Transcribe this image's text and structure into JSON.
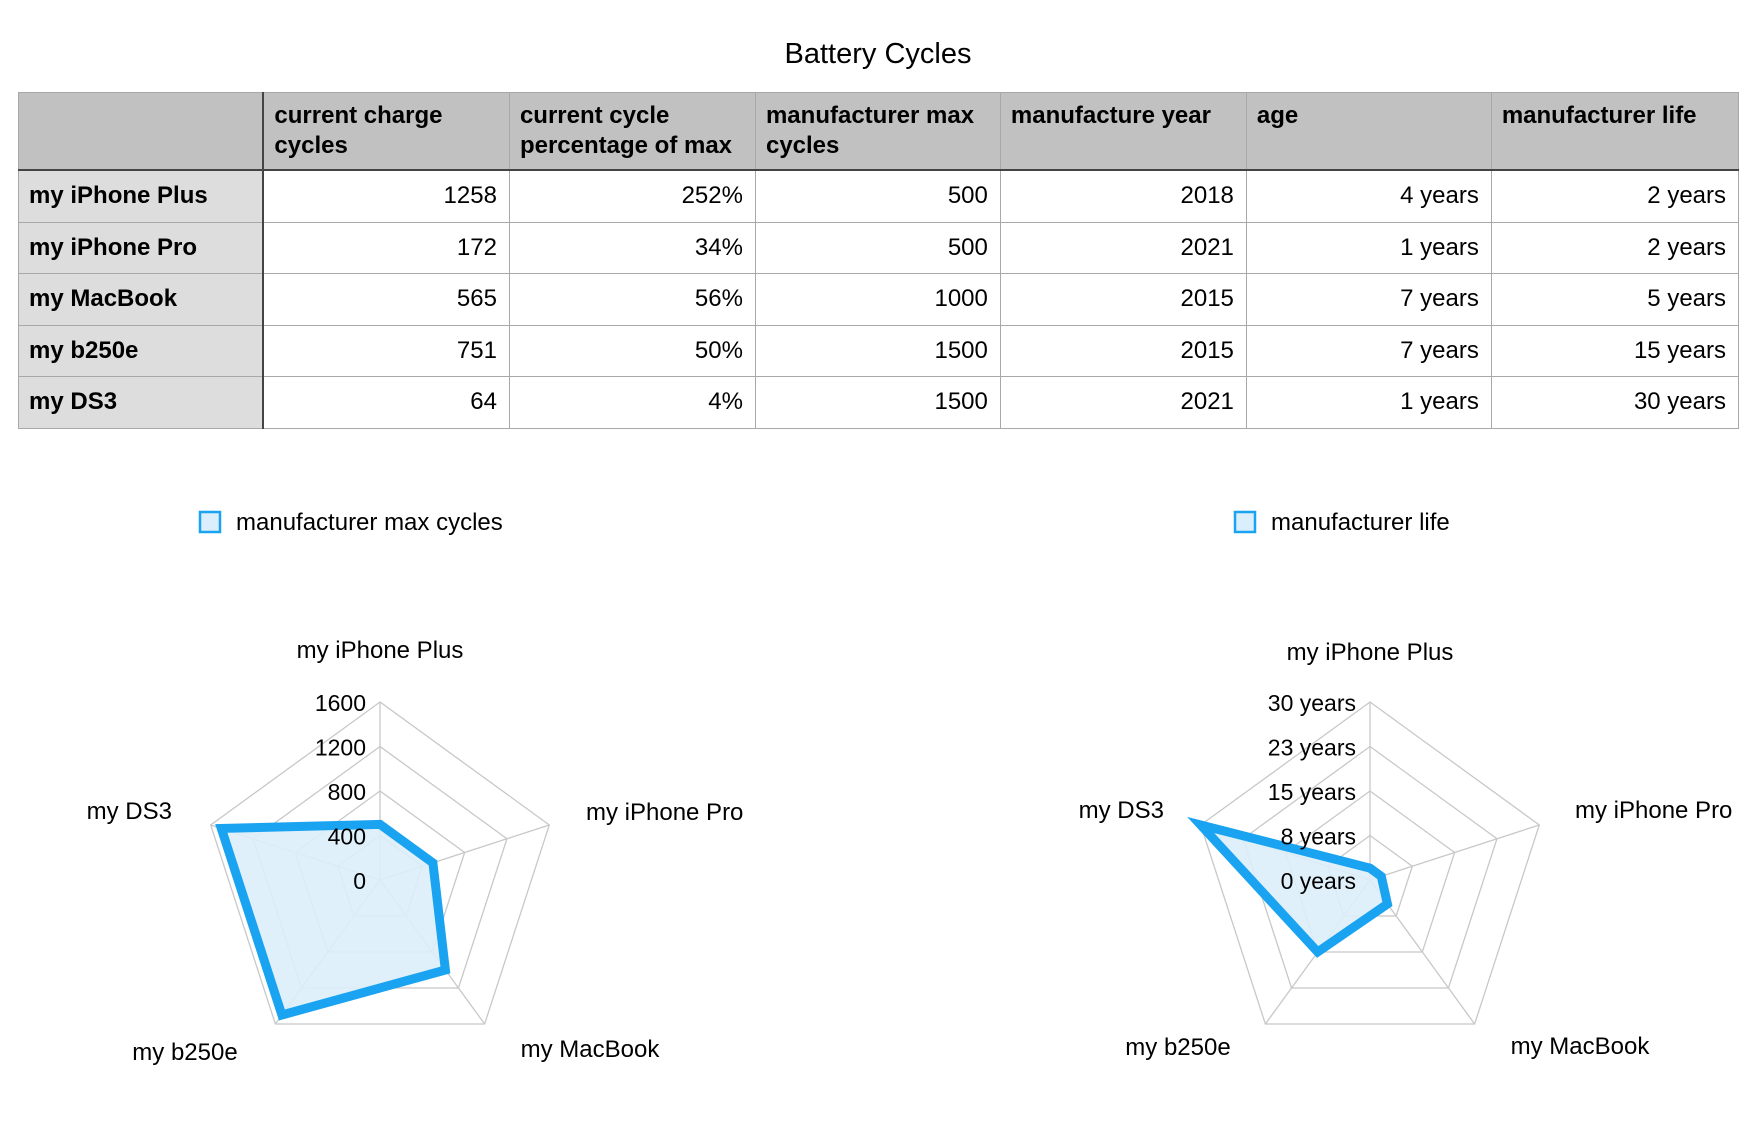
{
  "title": "Battery Cycles",
  "table": {
    "columns": [
      "",
      "current charge cycles",
      "current cycle percentage of max",
      "manufacturer max cycles",
      "manufacture year",
      "age",
      "manufacturer life"
    ],
    "rows": [
      {
        "label": "my iPhone Plus",
        "cells": [
          "1258",
          "252%",
          "500",
          "2018",
          "4 years",
          "2 years"
        ]
      },
      {
        "label": "my iPhone Pro",
        "cells": [
          "172",
          "34%",
          "500",
          "2021",
          "1 years",
          "2 years"
        ]
      },
      {
        "label": "my MacBook",
        "cells": [
          "565",
          "56%",
          "1000",
          "2015",
          "7 years",
          "5 years"
        ]
      },
      {
        "label": "my b250e",
        "cells": [
          "751",
          "50%",
          "1500",
          "2015",
          "7 years",
          "15 years"
        ]
      },
      {
        "label": "my DS3",
        "cells": [
          "64",
          "4%",
          "1500",
          "2021",
          "1 years",
          "30 years"
        ]
      }
    ]
  },
  "chart_data": [
    {
      "type": "radar",
      "categories": [
        "my iPhone Plus",
        "my iPhone Pro",
        "my MacBook",
        "my b250e",
        "my DS3"
      ],
      "series": [
        {
          "name": "manufacturer max cycles",
          "values": [
            500,
            500,
            1000,
            1500,
            1500
          ]
        }
      ],
      "rlim": [
        0,
        1600
      ],
      "ticks": [
        "0",
        "400",
        "800",
        "1200",
        "1600"
      ],
      "tick_values": [
        0,
        400,
        800,
        1200,
        1600
      ],
      "grid": true,
      "legend": "top",
      "color": "#1aa3f0",
      "fill": "#dbeefb"
    },
    {
      "type": "radar",
      "categories": [
        "my iPhone Plus",
        "my iPhone Pro",
        "my MacBook",
        "my b250e",
        "my DS3"
      ],
      "series": [
        {
          "name": "manufacturer life",
          "values": [
            2,
            2,
            5,
            15,
            30
          ]
        }
      ],
      "rlim": [
        0,
        30
      ],
      "ticks": [
        "0 years",
        "8 years",
        "15 years",
        "23 years",
        "30 years"
      ],
      "tick_values": [
        0,
        7.5,
        15,
        22.5,
        30
      ],
      "grid": true,
      "legend": "top",
      "color": "#1aa3f0",
      "fill": "#dbeefb"
    }
  ]
}
